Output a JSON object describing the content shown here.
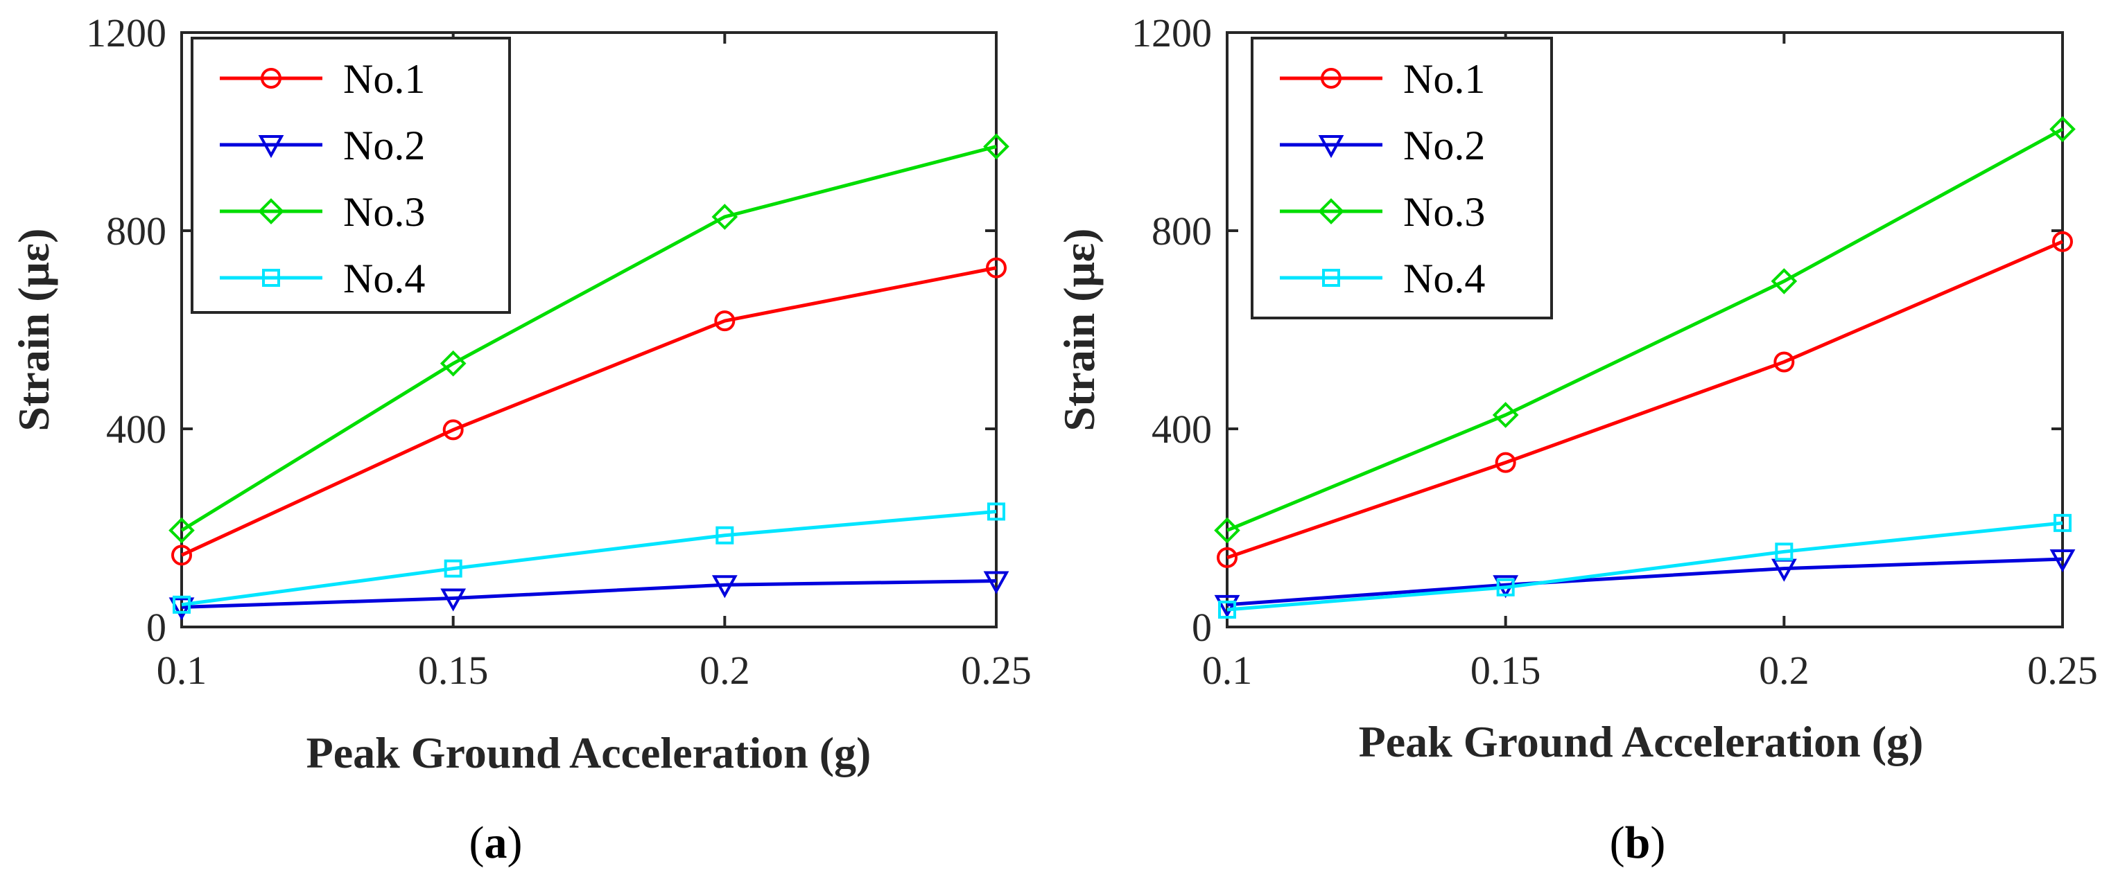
{
  "chart_data": [
    {
      "type": "line",
      "panel": "(a)",
      "panel_open": "(",
      "panel_letter": "a",
      "panel_close": ")",
      "xlabel": "Peak Ground Acceleration (g)",
      "ylabel": "Strain (με)",
      "x": [
        0.1,
        0.15,
        0.2,
        0.25
      ],
      "xticks": [
        "0.1",
        "0.15",
        "0.2",
        "0.25"
      ],
      "yticks": [
        "0",
        "400",
        "800",
        "1200"
      ],
      "xlim": [
        0.1,
        0.25
      ],
      "ylim": [
        0,
        1200
      ],
      "legend_position": "top-left",
      "series": [
        {
          "name": "No.1",
          "color": "#ff0000",
          "marker": "circle",
          "values": [
            145,
            398,
            618,
            725
          ]
        },
        {
          "name": "No.2",
          "color": "#0000dd",
          "marker": "triangle-down",
          "values": [
            40,
            58,
            85,
            93
          ]
        },
        {
          "name": "No.3",
          "color": "#00dd00",
          "marker": "diamond",
          "values": [
            195,
            532,
            828,
            970
          ]
        },
        {
          "name": "No.4",
          "color": "#00e5ff",
          "marker": "square",
          "values": [
            45,
            118,
            185,
            233
          ]
        }
      ]
    },
    {
      "type": "line",
      "panel": "(b)",
      "panel_open": "(",
      "panel_letter": "b",
      "panel_close": ")",
      "xlabel": "Peak Ground Acceleration (g)",
      "ylabel": "Strain (με)",
      "x": [
        0.1,
        0.15,
        0.2,
        0.25
      ],
      "xticks": [
        "0.1",
        "0.15",
        "0.2",
        "0.25"
      ],
      "yticks": [
        "0",
        "400",
        "800",
        "1200"
      ],
      "xlim": [
        0.1,
        0.25
      ],
      "ylim": [
        0,
        1200
      ],
      "legend_position": "top-left",
      "series": [
        {
          "name": "No.1",
          "color": "#ff0000",
          "marker": "circle",
          "values": [
            140,
            332,
            535,
            778
          ]
        },
        {
          "name": "No.2",
          "color": "#0000dd",
          "marker": "triangle-down",
          "values": [
            45,
            85,
            118,
            137
          ]
        },
        {
          "name": "No.3",
          "color": "#00dd00",
          "marker": "diamond",
          "values": [
            195,
            428,
            698,
            1005
          ]
        },
        {
          "name": "No.4",
          "color": "#00e5ff",
          "marker": "square",
          "values": [
            35,
            80,
            152,
            210
          ]
        }
      ]
    }
  ]
}
